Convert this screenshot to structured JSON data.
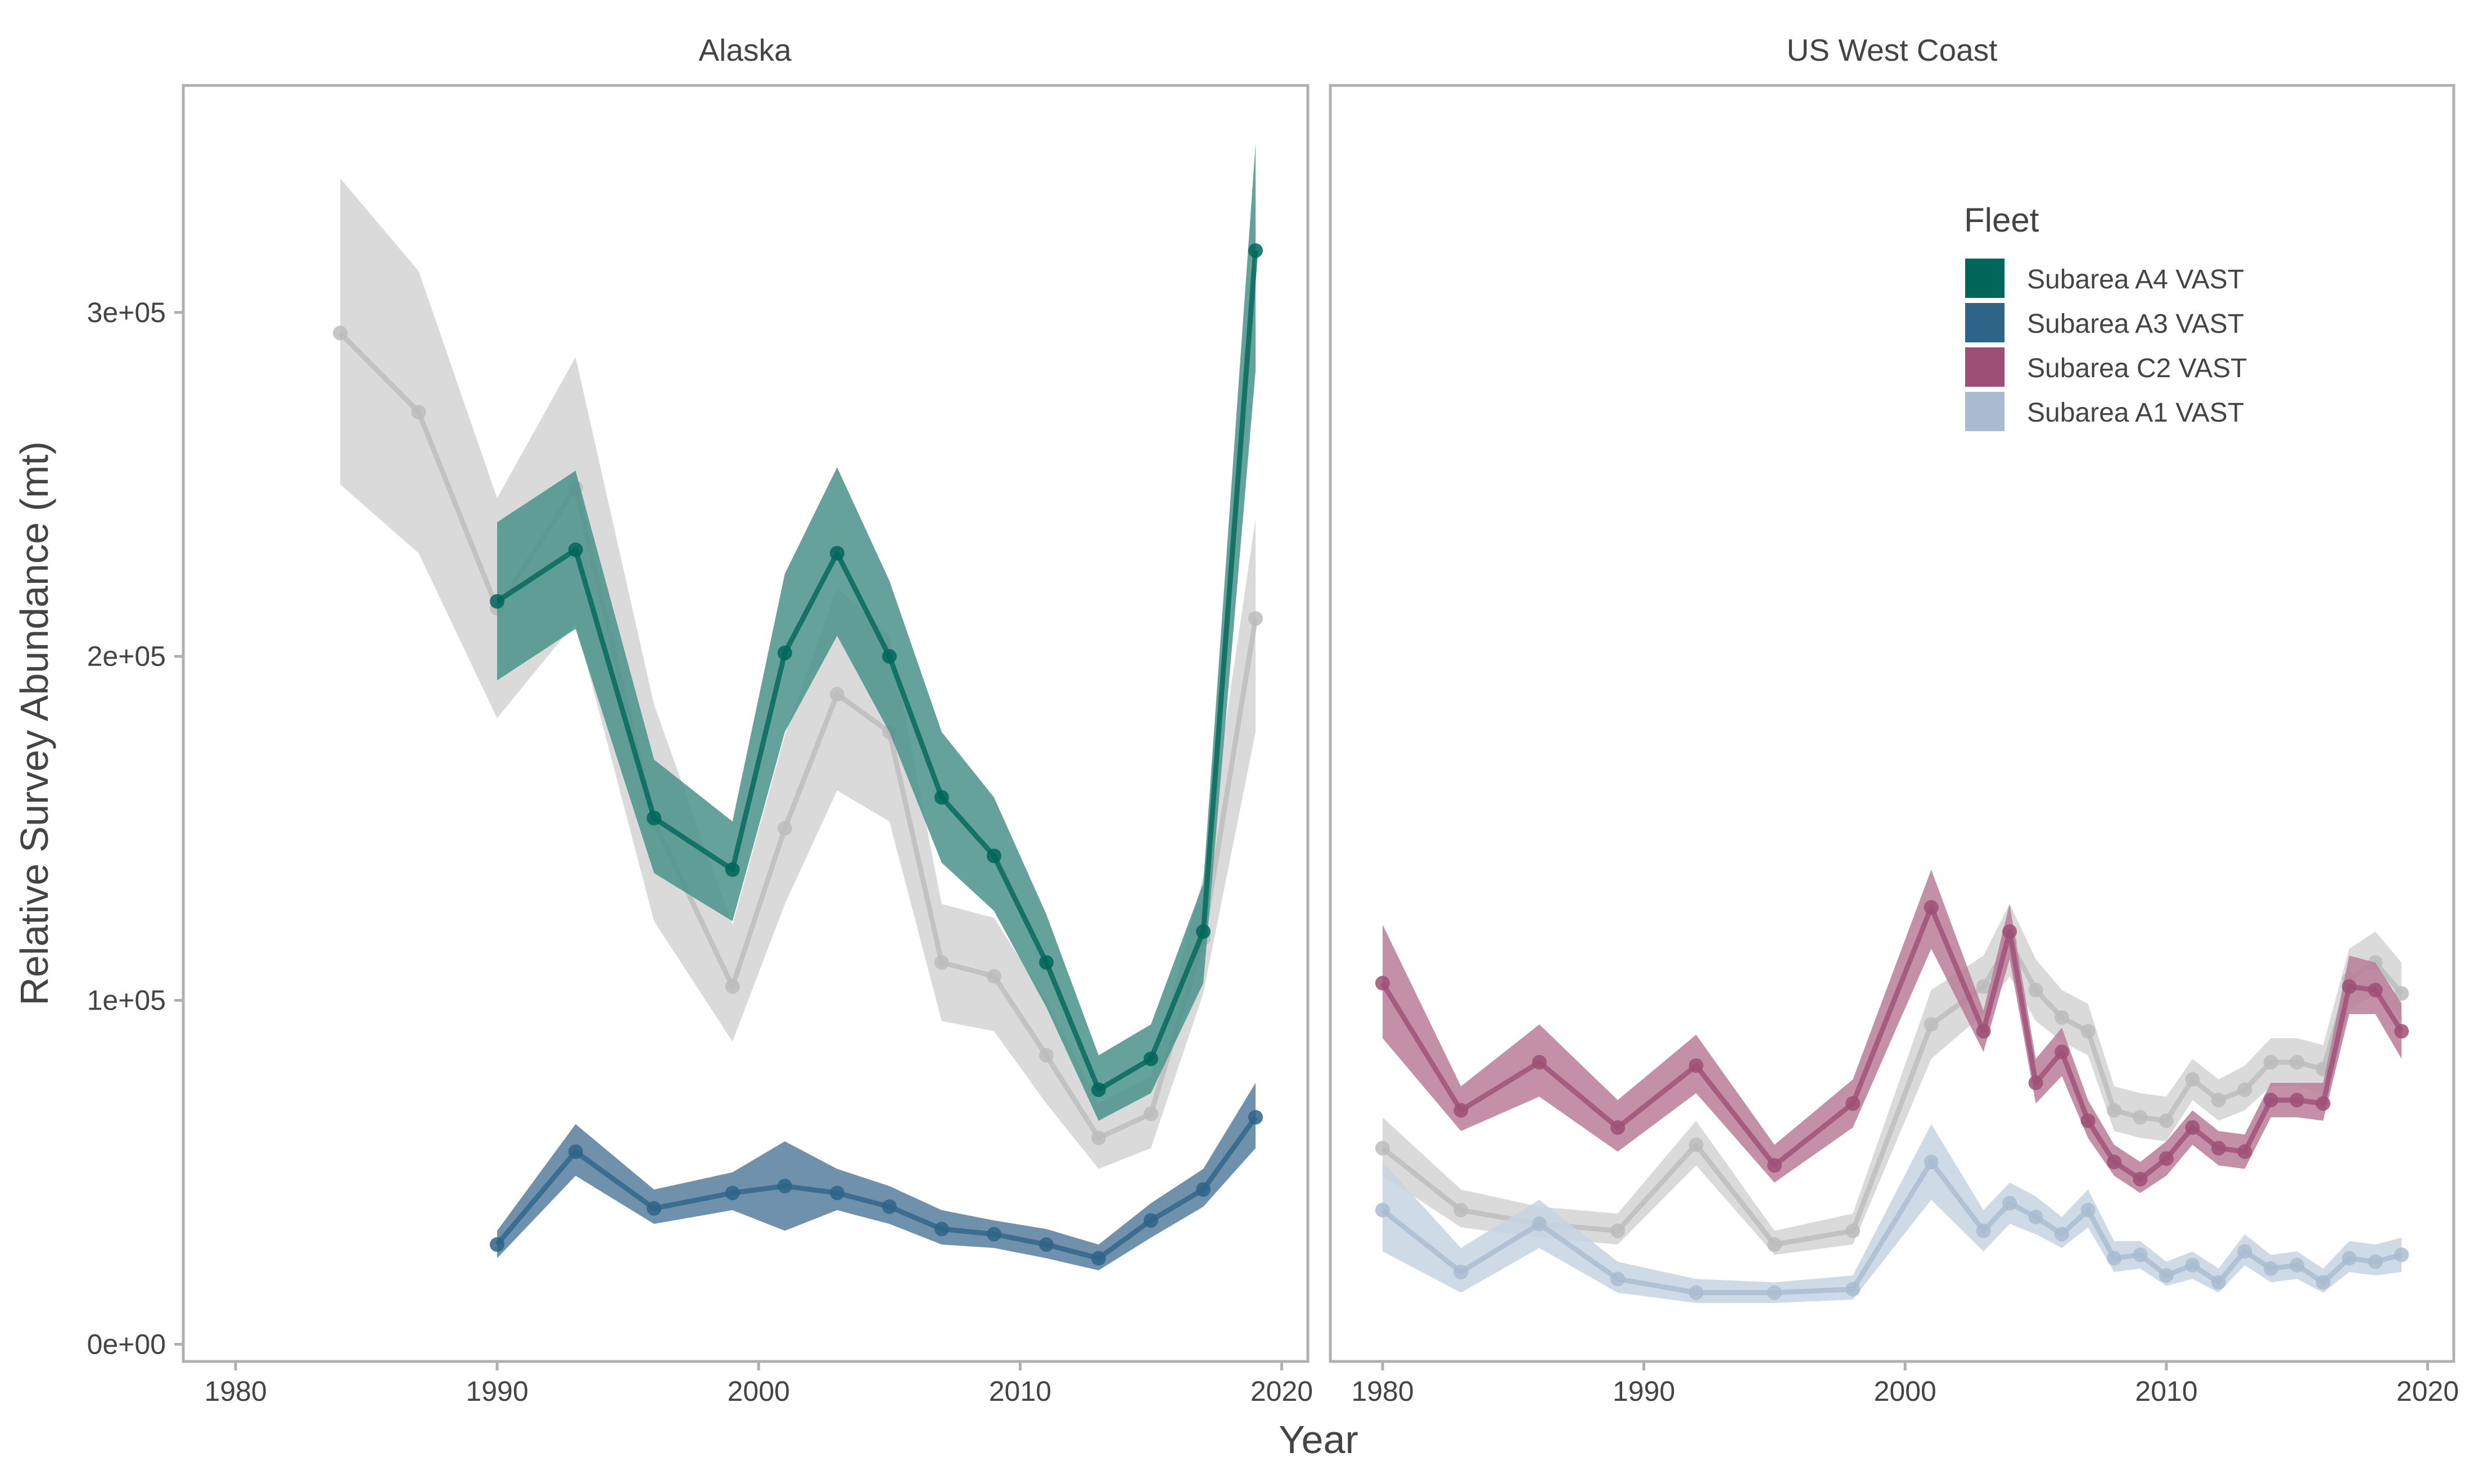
{
  "chart_data": {
    "type": "line",
    "xlabel": "Year",
    "ylabel": "Relative Survey Abundance (mt)",
    "y_ticks": [
      {
        "value": 0,
        "label": "0e+00"
      },
      {
        "value": 100000,
        "label": "1e+05"
      },
      {
        "value": 200000,
        "label": "2e+05"
      },
      {
        "value": 300000,
        "label": "3e+05"
      }
    ],
    "x_ticks": [
      1980,
      1990,
      2000,
      2010,
      2020
    ],
    "xlim": [
      1978,
      2021
    ],
    "ylim": [
      -5000,
      366000
    ],
    "legend": {
      "title": "Fleet",
      "placement": "top-right of US West Coast panel",
      "items": [
        {
          "label": "Subarea A4 VAST",
          "color": "#00665a"
        },
        {
          "label": "Subarea A3 VAST",
          "color": "#2d6488"
        },
        {
          "label": "Subarea C2 VAST",
          "color": "#9e4f76"
        },
        {
          "label": "Subarea A1 VAST",
          "color": "#a9bccf"
        }
      ]
    },
    "panels": [
      {
        "title": "Alaska",
        "series": [
          {
            "name": "",
            "color": "#bcbcbc",
            "band_color": "#d4d4d4",
            "x": [
              1984,
              1987,
              1990,
              1993,
              1996,
              1999,
              2001,
              2003,
              2005,
              2007,
              2009,
              2011,
              2013,
              2015,
              2017,
              2019
            ],
            "y": [
              294000,
              271000,
              214000,
              249000,
              152000,
              104000,
              150000,
              189000,
              178000,
              111000,
              107000,
              84000,
              60000,
              67000,
              118000,
              211000
            ],
            "lower": [
              250000,
              230000,
              182000,
              210000,
              123000,
              88000,
              128000,
              161000,
              152000,
              94000,
              91000,
              70000,
              51000,
              57000,
              102000,
              178000
            ],
            "upper": [
              339000,
              312000,
              246000,
              287000,
              186000,
              122000,
              177000,
              220000,
              206000,
              128000,
              124000,
              100000,
              70000,
              78000,
              136000,
              240000
            ]
          },
          {
            "name": "Subarea A4 VAST",
            "color": "#00665a",
            "band_color": "#4a9289",
            "x": [
              1990,
              1993,
              1996,
              1999,
              2001,
              2003,
              2005,
              2007,
              2009,
              2011,
              2013,
              2015,
              2017,
              2019
            ],
            "y": [
              216000,
              231000,
              153000,
              138000,
              201000,
              230000,
              200000,
              159000,
              142000,
              111000,
              74000,
              83000,
              120000,
              318000
            ],
            "lower": [
              193000,
              208000,
              137000,
              123000,
              178000,
              206000,
              178000,
              140000,
              126000,
              98000,
              65000,
              73000,
              105000,
              283000
            ],
            "upper": [
              239000,
              254000,
              170000,
              152000,
              224000,
              255000,
              222000,
              178000,
              159000,
              125000,
              84000,
              93000,
              134000,
              349000
            ]
          },
          {
            "name": "Subarea A3 VAST",
            "color": "#2d6488",
            "band_color": "#567e9d",
            "x": [
              1990,
              1993,
              1996,
              1999,
              2001,
              2003,
              2005,
              2007,
              2009,
              2011,
              2013,
              2015,
              2017,
              2019
            ],
            "y": [
              29000,
              56000,
              39500,
              44000,
              46000,
              44000,
              40000,
              33500,
              32000,
              29000,
              25000,
              36000,
              45000,
              66000
            ],
            "lower": [
              25000,
              49000,
              35000,
              39000,
              33000,
              39000,
              35000,
              29000,
              28000,
              25000,
              21500,
              31000,
              40000,
              57000
            ],
            "upper": [
              33000,
              64000,
              45000,
              50000,
              59000,
              51000,
              46000,
              39000,
              36000,
              33500,
              29000,
              41000,
              51000,
              76000
            ]
          }
        ]
      },
      {
        "title": "US West Coast",
        "series": [
          {
            "name": "",
            "color": "#bcbcbc",
            "band_color": "#d4d4d4",
            "x": [
              1980,
              1983,
              1986,
              1989,
              1992,
              1995,
              1998,
              2001,
              2003,
              2004,
              2005,
              2006,
              2007,
              2008,
              2009,
              2010,
              2011,
              2012,
              2013,
              2014,
              2015,
              2016,
              2017,
              2018,
              2019
            ],
            "y": [
              57000,
              39000,
              35000,
              33000,
              58000,
              29000,
              33000,
              93000,
              104000,
              117000,
              103000,
              95000,
              91000,
              68000,
              66000,
              65000,
              77000,
              71000,
              74000,
              82000,
              82000,
              80000,
              106000,
              111000,
              102000
            ],
            "lower": [
              49000,
              34000,
              31000,
              29000,
              52000,
              26000,
              29000,
              83000,
              96000,
              107000,
              94000,
              88000,
              84000,
              62000,
              60000,
              59000,
              71000,
              65000,
              68000,
              75000,
              75000,
              73000,
              97000,
              102000,
              94000
            ],
            "upper": [
              66000,
              45000,
              40000,
              38000,
              65000,
              33000,
              38000,
              103000,
              113000,
              128000,
              112000,
              103000,
              99000,
              75000,
              73000,
              72000,
              83000,
              77000,
              81000,
              89000,
              89000,
              87000,
              115000,
              120000,
              111000
            ]
          },
          {
            "name": "Subarea C2 VAST",
            "color": "#9e4f76",
            "band_color": "#b87c99",
            "x": [
              1980,
              1983,
              1986,
              1989,
              1992,
              1995,
              1998,
              2001,
              2003,
              2004,
              2005,
              2006,
              2007,
              2008,
              2009,
              2010,
              2011,
              2012,
              2013,
              2014,
              2015,
              2016,
              2017,
              2018,
              2019
            ],
            "y": [
              105000,
              68000,
              82000,
              63000,
              81000,
              52000,
              70000,
              127000,
              91000,
              120000,
              76000,
              85000,
              65000,
              53000,
              48000,
              54000,
              63000,
              57000,
              56000,
              71000,
              71000,
              70000,
              104000,
              103000,
              91000
            ],
            "lower": [
              89000,
              62000,
              72000,
              56000,
              73000,
              47000,
              63000,
              115000,
              85000,
              112000,
              70000,
              78000,
              60000,
              49000,
              44000,
              49000,
              58000,
              52000,
              51000,
              66000,
              66000,
              65000,
              96000,
              96000,
              83000
            ],
            "upper": [
              122000,
              75000,
              93000,
              71000,
              90000,
              58000,
              77000,
              138000,
              97000,
              128000,
              83000,
              92000,
              71000,
              58000,
              53000,
              59000,
              68000,
              62000,
              61000,
              76000,
              76000,
              76000,
              113000,
              111000,
              99000
            ]
          },
          {
            "name": "Subarea A1 VAST",
            "color": "#a9bccf",
            "band_color": "#c5d3e0",
            "x": [
              1980,
              1983,
              1986,
              1989,
              1992,
              1995,
              1998,
              2001,
              2003,
              2004,
              2005,
              2006,
              2007,
              2008,
              2009,
              2010,
              2011,
              2012,
              2013,
              2014,
              2015,
              2016,
              2017,
              2018,
              2019
            ],
            "y": [
              39000,
              21000,
              35000,
              19000,
              15000,
              15000,
              16000,
              53000,
              33000,
              41000,
              37000,
              32000,
              39000,
              25000,
              26000,
              20000,
              23000,
              18000,
              27000,
              22000,
              23000,
              18000,
              25000,
              24000,
              26000
            ],
            "lower": [
              27000,
              15000,
              28000,
              15000,
              12000,
              12000,
              13000,
              42000,
              27000,
              35000,
              32000,
              28000,
              34000,
              21000,
              22000,
              17000,
              19000,
              15000,
              23000,
              18000,
              19000,
              15000,
              21000,
              20000,
              21000
            ],
            "upper": [
              53000,
              28000,
              42000,
              24000,
              19000,
              18000,
              20000,
              64000,
              39000,
              47000,
              43000,
              37000,
              45000,
              30000,
              30000,
              24000,
              27000,
              22000,
              32000,
              26000,
              27000,
              22000,
              30000,
              29000,
              31000
            ]
          }
        ]
      }
    ]
  }
}
